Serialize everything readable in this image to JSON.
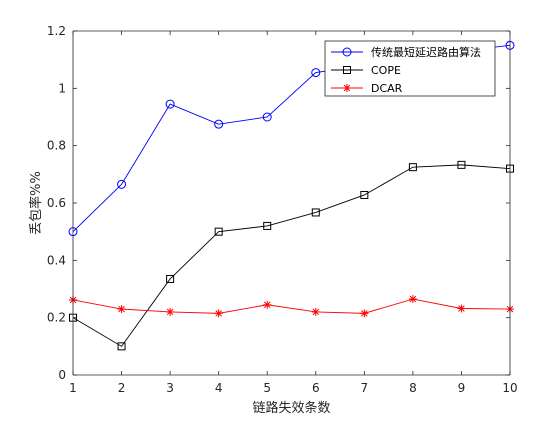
{
  "chart_data": {
    "type": "line",
    "title": "",
    "xlabel": "链路失效条数",
    "ylabel": "丢包率%%",
    "xlim": [
      1,
      10
    ],
    "ylim": [
      0,
      1.2
    ],
    "x": [
      1,
      2,
      3,
      4,
      5,
      6,
      7,
      8,
      9,
      10
    ],
    "xticks": [
      1,
      2,
      3,
      4,
      5,
      6,
      7,
      8,
      9,
      10
    ],
    "yticks": [
      "0",
      "0.2",
      "0.4",
      "0.6",
      "0.8",
      "1",
      "1.2"
    ],
    "grid": false,
    "legend_position": "top-right",
    "series": [
      {
        "name": "传统最短延迟路由算法",
        "color": "#0000ff",
        "marker": "circle",
        "values": [
          0.5,
          0.665,
          0.945,
          0.875,
          0.9,
          1.055,
          1.08,
          1.12,
          1.13,
          1.15
        ]
      },
      {
        "name": "COPE",
        "color": "#000000",
        "marker": "square",
        "values": [
          0.2,
          0.1,
          0.335,
          0.5,
          0.52,
          0.567,
          0.628,
          0.725,
          0.733,
          0.72
        ]
      },
      {
        "name": "DCAR",
        "color": "#ff0000",
        "marker": "asterisk",
        "values": [
          0.262,
          0.23,
          0.22,
          0.215,
          0.245,
          0.22,
          0.215,
          0.265,
          0.232,
          0.23
        ]
      }
    ]
  }
}
